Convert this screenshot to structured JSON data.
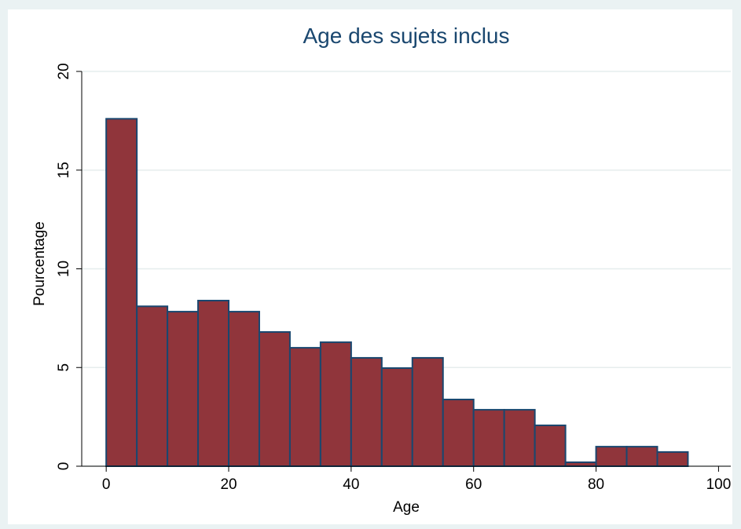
{
  "chart_data": {
    "type": "histogram",
    "title": "Age des sujets inclus",
    "xlabel": "Age",
    "ylabel": "Pourcentage",
    "bins": [
      0,
      5,
      10,
      15,
      20,
      25,
      30,
      35,
      40,
      45,
      50,
      55,
      60,
      65,
      70,
      75,
      80,
      85,
      90,
      95
    ],
    "values": [
      17.6,
      8.1,
      7.83,
      8.39,
      7.83,
      6.8,
      6.0,
      6.28,
      5.49,
      4.97,
      5.49,
      3.38,
      2.86,
      2.86,
      2.07,
      0.2,
      0.99,
      0.99,
      0.72
    ],
    "color": "#90353b",
    "edge_color": "#1a476f",
    "xlim": [
      -4,
      102
    ],
    "ylim": [
      0,
      20
    ],
    "xticks": [
      0,
      20,
      40,
      60,
      80,
      100
    ],
    "yticks": [
      0,
      5,
      10,
      15,
      20
    ],
    "grid": true
  }
}
